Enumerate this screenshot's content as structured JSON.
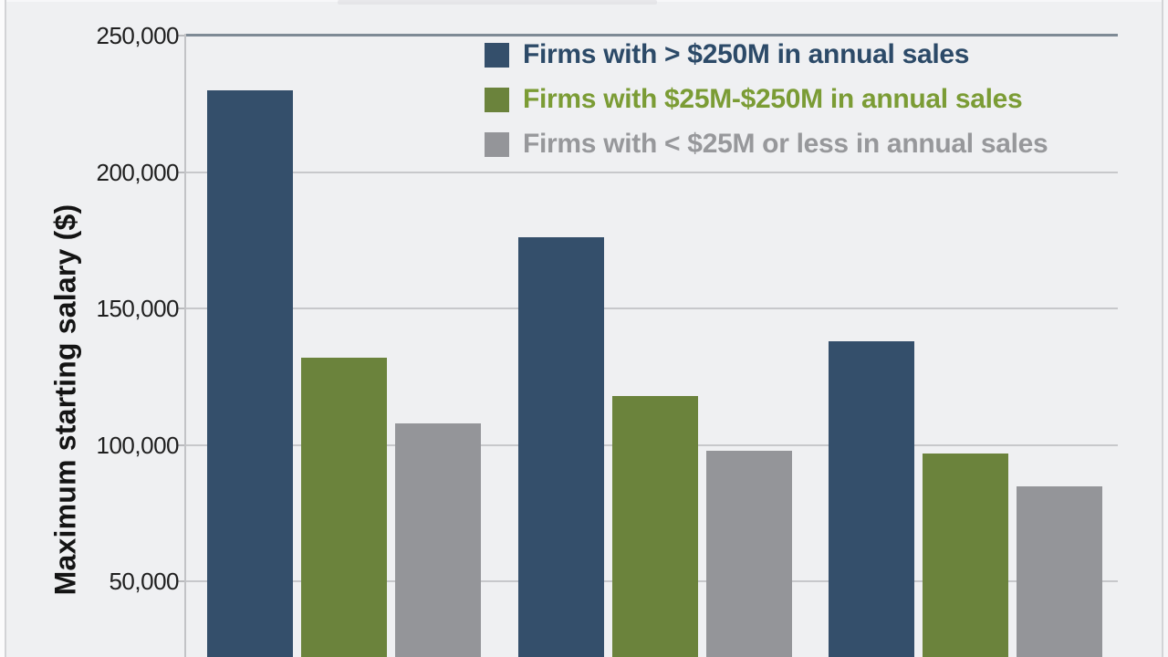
{
  "chart_data": {
    "type": "bar",
    "title": "",
    "ylabel": "Maximum starting salary ($)",
    "ylim": [
      0,
      250000
    ],
    "grid": true,
    "legend_position": "top-right",
    "x_axis_cropped": true,
    "categories": [
      "",
      "",
      ""
    ],
    "y_ticks": [
      {
        "value": 250000,
        "label": "250,000"
      },
      {
        "value": 200000,
        "label": "200,000"
      },
      {
        "value": 150000,
        "label": "150,000"
      },
      {
        "value": 100000,
        "label": "100,000"
      },
      {
        "value": 50000,
        "label": "50,000"
      }
    ],
    "series": [
      {
        "name": "Firms with > $250M in annual sales",
        "color": "#344f6b",
        "legend_text_color": "#2c4a68",
        "values": [
          230000,
          176000,
          138000
        ]
      },
      {
        "name": "Firms with $25M-$250M in annual sales",
        "color": "#6b833c",
        "legend_text_color": "#7b9c35",
        "values": [
          132000,
          118000,
          97000
        ]
      },
      {
        "name": "Firms with < $25M or less in annual sales",
        "color": "#949599",
        "legend_text_color": "#97989b",
        "values": [
          108000,
          98000,
          85000
        ]
      }
    ]
  }
}
